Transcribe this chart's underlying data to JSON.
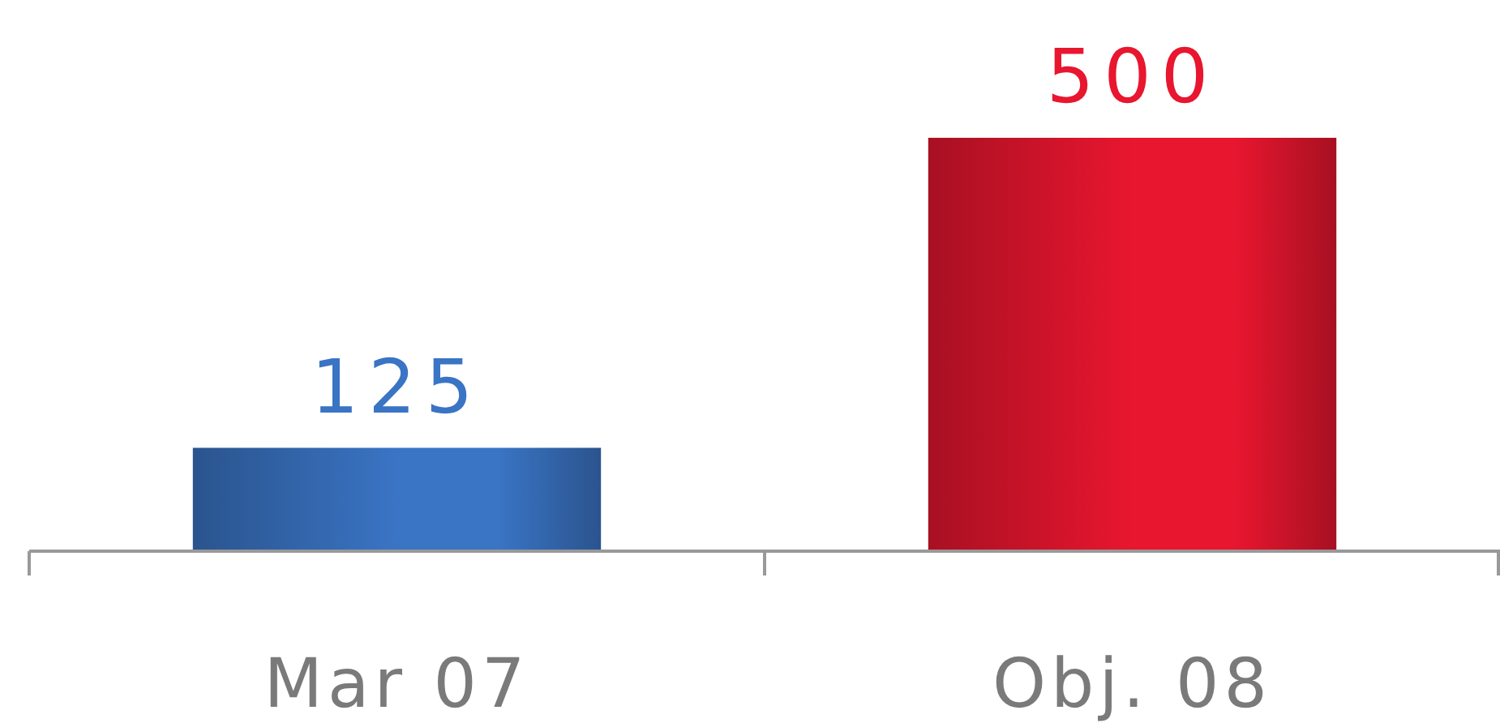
{
  "chart_data": {
    "type": "bar",
    "categories": [
      "Mar 07",
      "Obj. 08"
    ],
    "values": [
      125,
      500
    ],
    "colors": [
      "#3a74c4",
      "#e8162f"
    ],
    "data_labels": true
  }
}
